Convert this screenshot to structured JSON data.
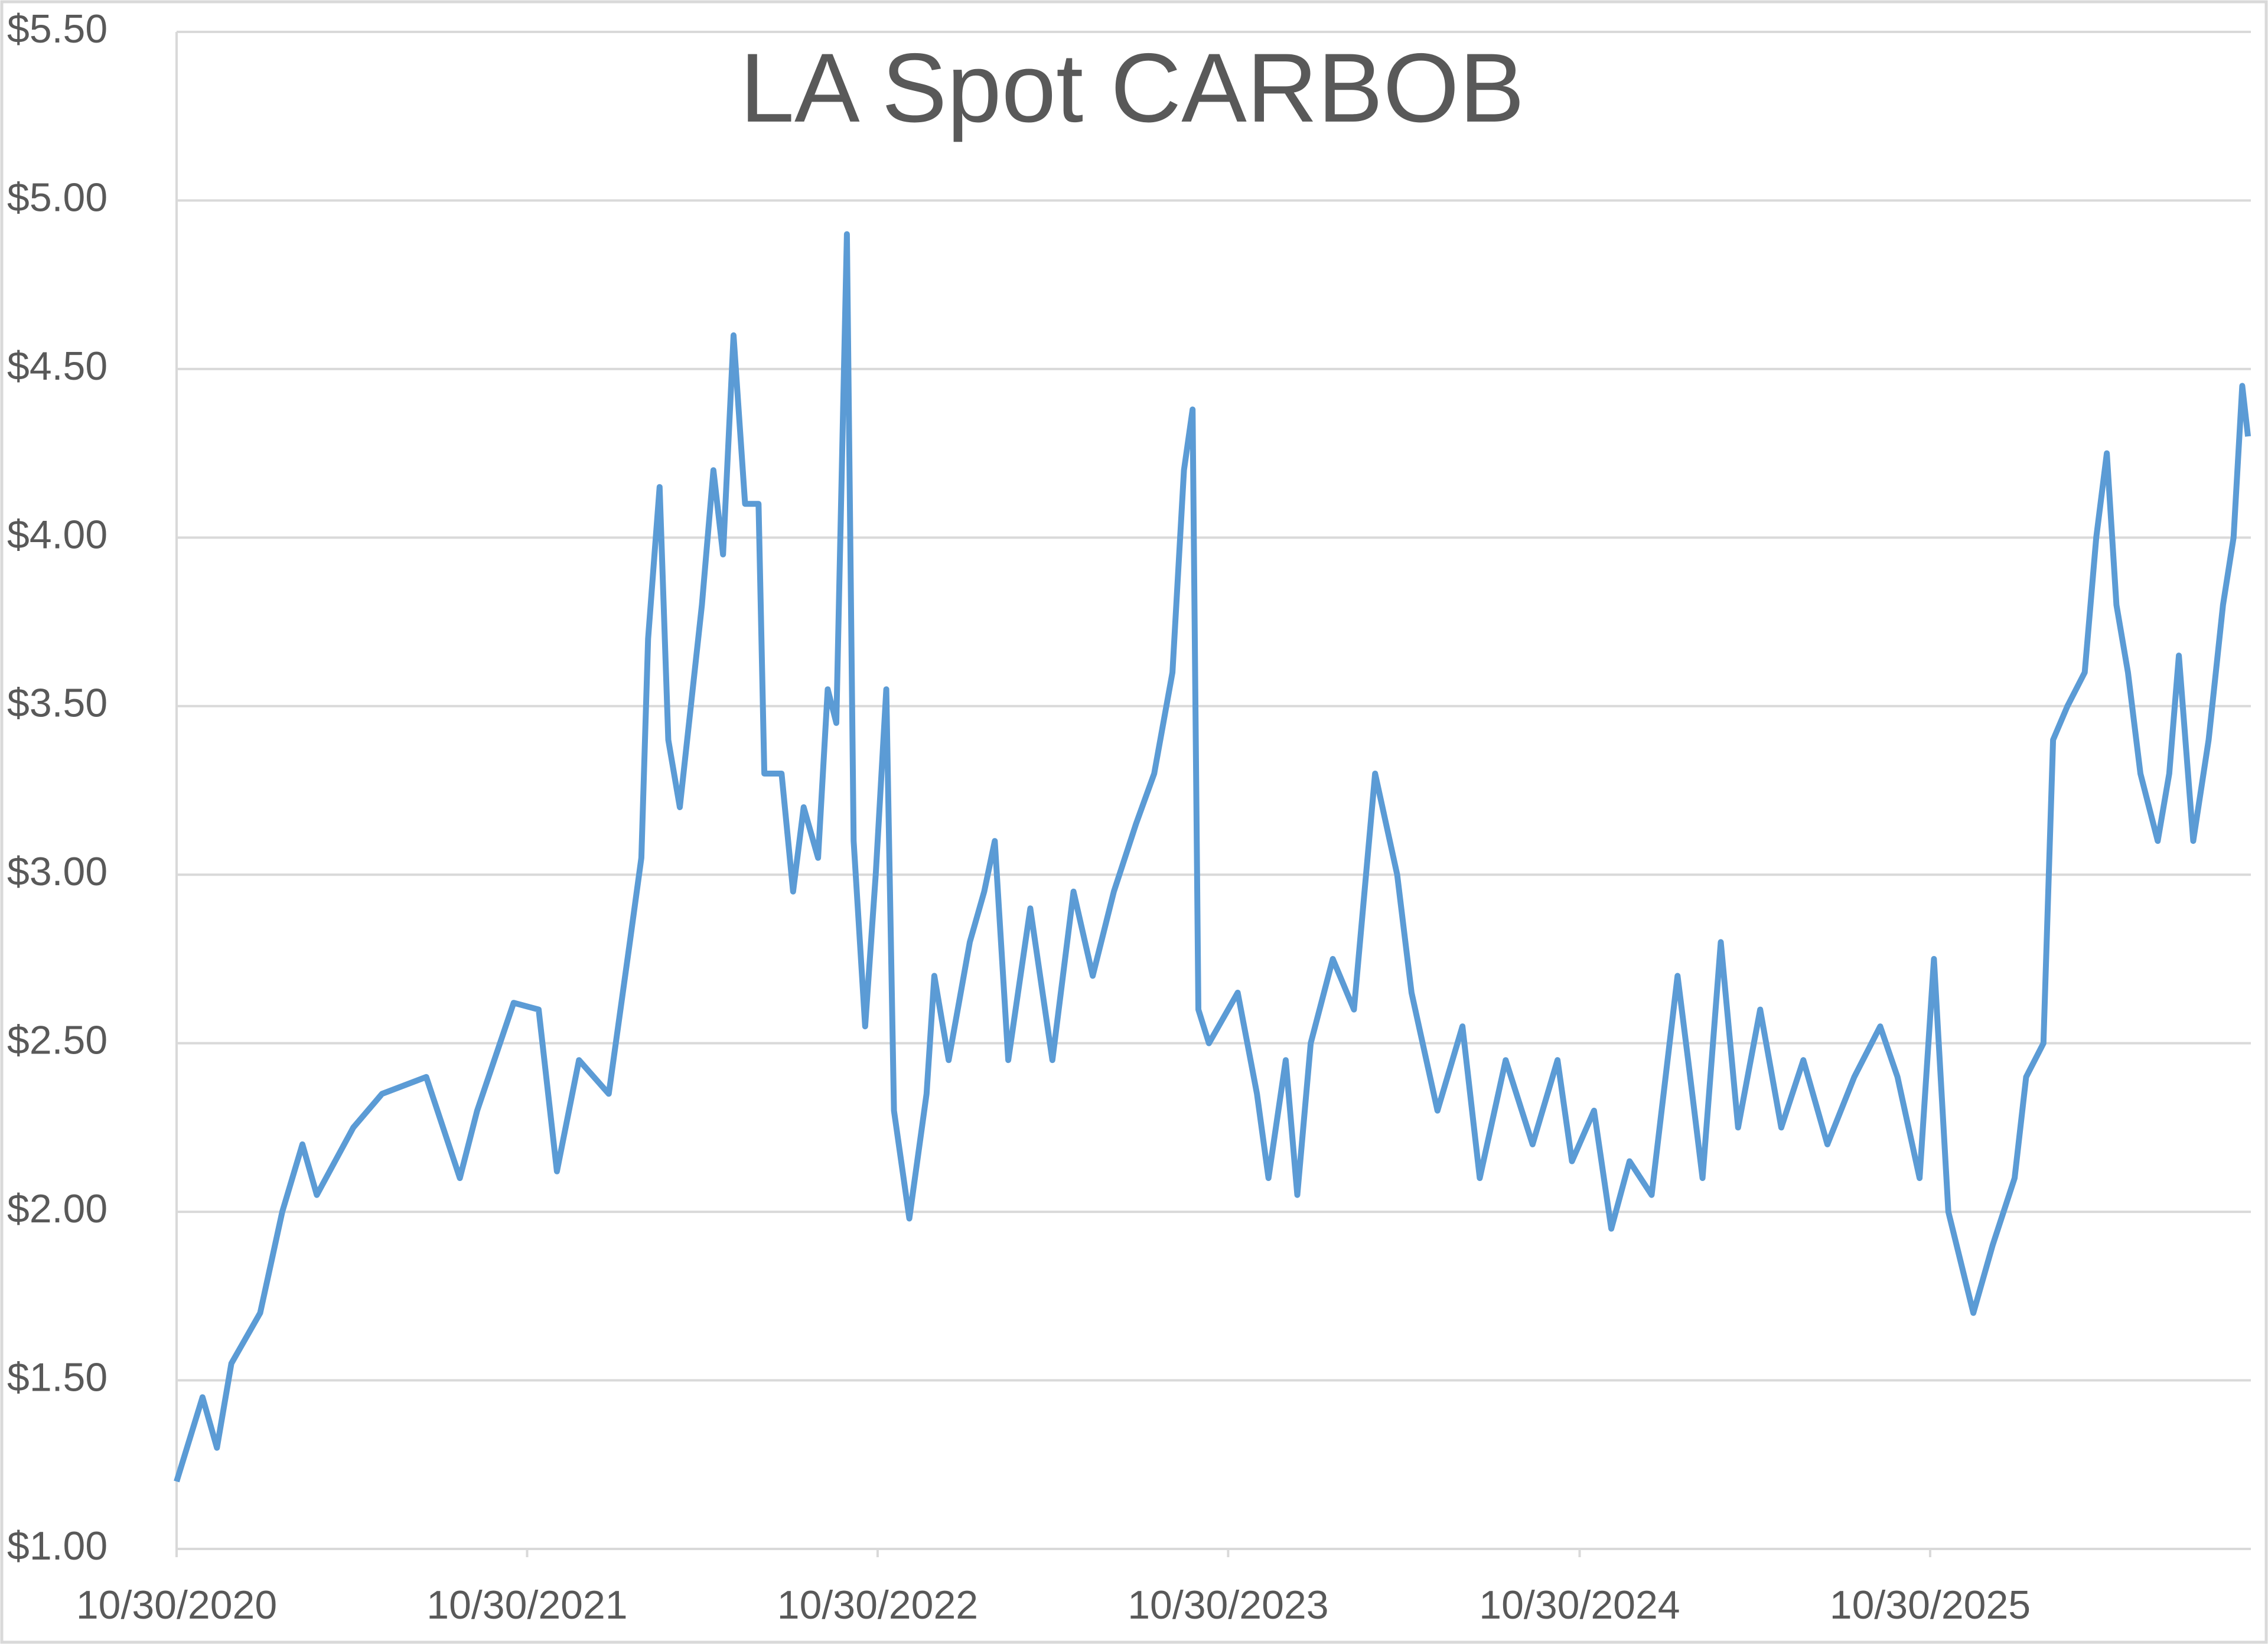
{
  "chart_data": {
    "type": "line",
    "title": "LA Spot CARBOB",
    "x": [
      "10/30/2020",
      "11/26/2020",
      "12/11/2020",
      "12/26/2020",
      "01/25/2021",
      "02/17/2021",
      "03/10/2021",
      "03/25/2021",
      "05/02/2021",
      "06/01/2021",
      "07/17/2021",
      "08/21/2021",
      "09/08/2021",
      "10/16/2021",
      "11/11/2021",
      "11/30/2021",
      "12/23/2021",
      "01/23/2022",
      "02/14/2022",
      "02/26/2022",
      "03/05/2022",
      "03/17/2022",
      "03/26/2022",
      "04/07/2022",
      "04/30/2022",
      "05/12/2022",
      "05/22/2022",
      "06/02/2022",
      "06/14/2022",
      "06/28/2022",
      "07/04/2022",
      "07/22/2022",
      "08/03/2022",
      "08/14/2022",
      "08/29/2022",
      "09/08/2022",
      "09/17/2022",
      "09/28/2022",
      "10/05/2022",
      "10/17/2022",
      "10/28/2022",
      "11/08/2022",
      "11/16/2022",
      "12/02/2022",
      "12/20/2022",
      "12/28/2022",
      "01/12/2023",
      "02/03/2023",
      "02/18/2023",
      "03/01/2023",
      "03/15/2023",
      "04/07/2023",
      "04/30/2023",
      "05/22/2023",
      "06/11/2023",
      "07/03/2023",
      "07/26/2023",
      "08/14/2023",
      "09/02/2023",
      "09/14/2023",
      "09/23/2023",
      "09/29/2023",
      "10/10/2023",
      "11/09/2023",
      "11/29/2023",
      "12/11/2023",
      "12/29/2023",
      "01/10/2024",
      "01/24/2024",
      "02/16/2024",
      "03/09/2024",
      "03/31/2024",
      "04/23/2024",
      "05/08/2024",
      "06/04/2024",
      "06/30/2024",
      "07/18/2024",
      "08/14/2024",
      "09/11/2024",
      "10/07/2024",
      "10/22/2024",
      "11/14/2024",
      "12/02/2024",
      "12/21/2024",
      "01/13/2025",
      "02/09/2025",
      "02/20/2025",
      "03/07/2025",
      "03/26/2025",
      "04/13/2025",
      "05/06/2025",
      "05/28/2025",
      "06/20/2025",
      "07/15/2025",
      "08/12/2025",
      "09/08/2025",
      "09/26/2025",
      "10/19/2025",
      "11/03/2025",
      "11/18/2025",
      "12/14/2025",
      "01/03/2026",
      "01/26/2026",
      "02/07/2026",
      "02/25/2026",
      "03/07/2026",
      "03/22/2026",
      "04/09/2026",
      "04/21/2026",
      "05/02/2026",
      "05/12/2026",
      "05/24/2026",
      "06/06/2026",
      "06/24/2026",
      "07/06/2026",
      "07/16/2026",
      "07/31/2026",
      "08/16/2026",
      "08/31/2026",
      "09/11/2026",
      "09/20/2026",
      "09/26/2026"
    ],
    "series": [
      {
        "name": "LA Spot CARBOB",
        "color": "#5b9bd5",
        "values": [
          1.2,
          1.45,
          1.3,
          1.55,
          1.7,
          2.0,
          2.2,
          2.05,
          2.25,
          2.35,
          2.4,
          2.1,
          2.3,
          2.62,
          2.6,
          2.12,
          2.45,
          2.35,
          2.8,
          3.05,
          3.7,
          4.15,
          3.4,
          3.2,
          3.8,
          4.2,
          3.95,
          4.6,
          4.1,
          4.1,
          3.3,
          3.3,
          2.95,
          3.2,
          3.05,
          3.55,
          3.45,
          4.9,
          3.1,
          2.55,
          3.0,
          3.55,
          2.3,
          1.98,
          2.35,
          2.7,
          2.45,
          2.8,
          2.95,
          3.1,
          2.45,
          2.9,
          2.45,
          2.95,
          2.7,
          2.95,
          3.15,
          3.3,
          3.6,
          4.2,
          4.38,
          2.6,
          2.5,
          2.65,
          2.35,
          2.1,
          2.45,
          2.05,
          2.5,
          2.75,
          2.6,
          3.3,
          3.0,
          2.65,
          2.3,
          2.55,
          2.1,
          2.45,
          2.2,
          2.45,
          2.15,
          2.3,
          1.95,
          2.15,
          2.05,
          2.7,
          2.45,
          2.1,
          2.8,
          2.25,
          2.6,
          2.25,
          2.45,
          2.2,
          2.4,
          2.55,
          2.4,
          2.1,
          2.75,
          2.0,
          1.7,
          1.9,
          2.1,
          2.4,
          2.5,
          3.4,
          3.5,
          3.6,
          4.0,
          4.25,
          3.8,
          3.6,
          3.3,
          3.1,
          3.3,
          3.65,
          3.1,
          3.4,
          3.8,
          4.0,
          4.45,
          4.3
        ]
      }
    ],
    "xlim": [
      "10/30/2020",
      "09/29/2026"
    ],
    "xticks": [
      "10/30/2020",
      "10/30/2021",
      "10/30/2022",
      "10/30/2023",
      "10/30/2024",
      "10/30/2025"
    ],
    "ylim": [
      1,
      5.5
    ],
    "yticks": [
      {
        "value": 1,
        "label": "$1.00"
      },
      {
        "value": 1.5,
        "label": "$1.50"
      },
      {
        "value": 2,
        "label": "$2.00"
      },
      {
        "value": 2.5,
        "label": "$2.50"
      },
      {
        "value": 3,
        "label": "$3.00"
      },
      {
        "value": 3.5,
        "label": "$3.50"
      },
      {
        "value": 4,
        "label": "$4.00"
      },
      {
        "value": 4.5,
        "label": "$4.50"
      },
      {
        "value": 5,
        "label": "$5.00"
      },
      {
        "value": 5.5,
        "label": "$5.50"
      }
    ],
    "grid": true
  }
}
